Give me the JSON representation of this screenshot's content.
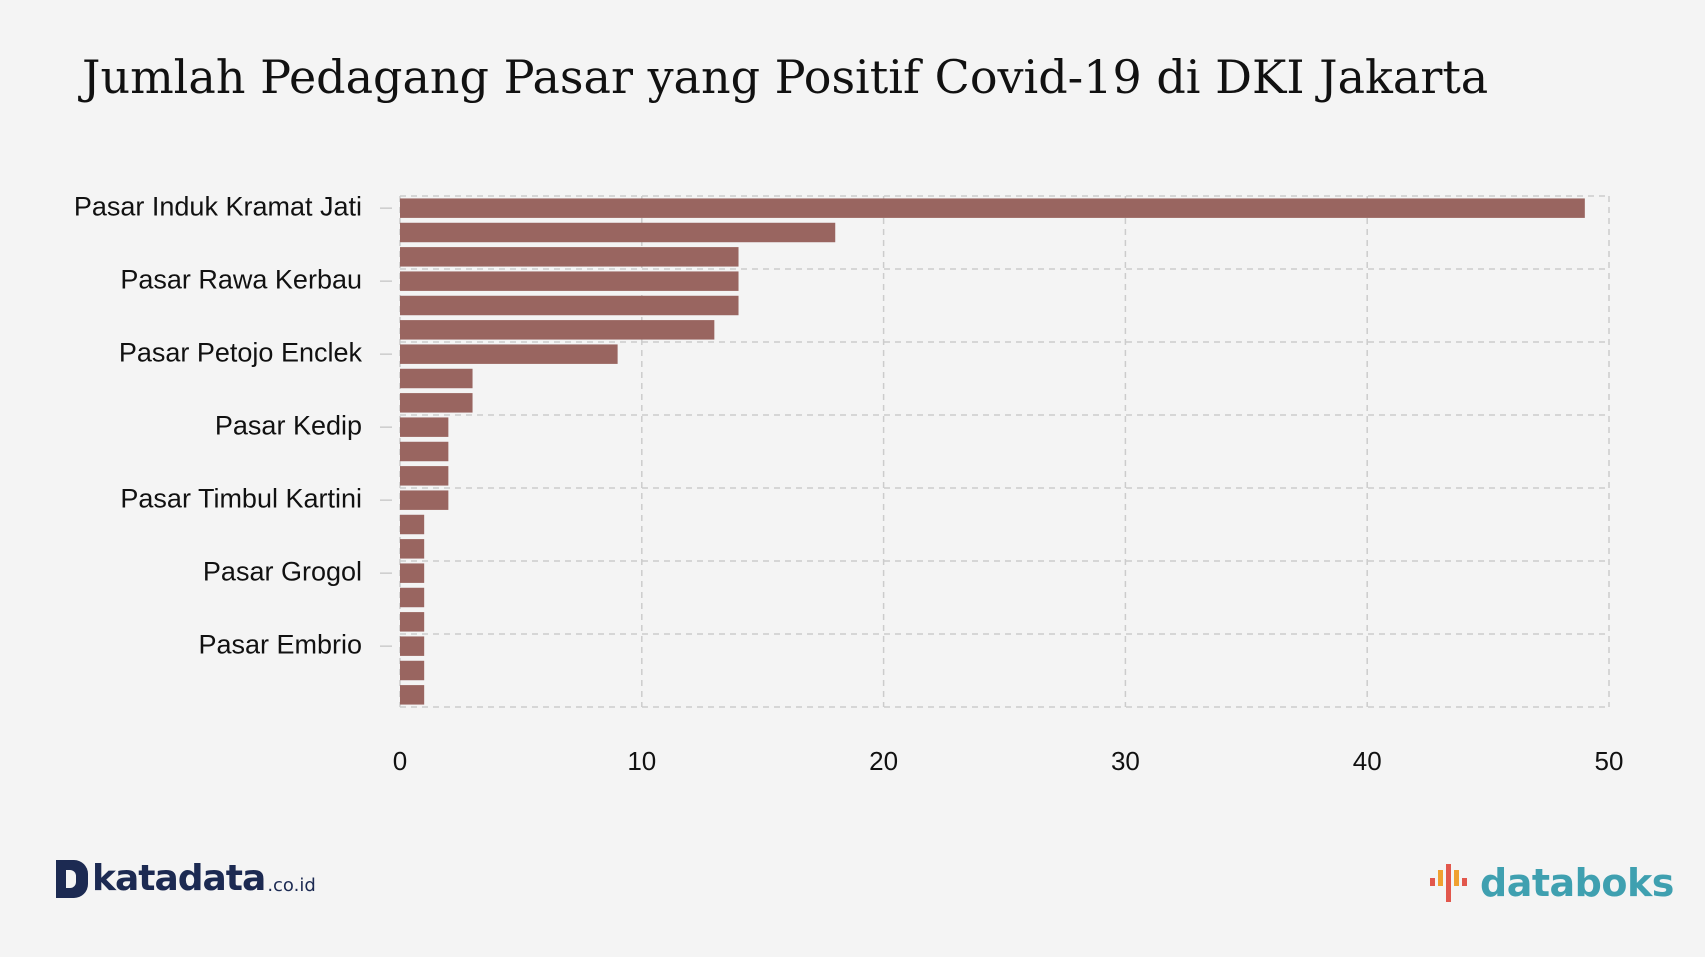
{
  "chart_data": {
    "type": "bar",
    "orientation": "horizontal",
    "title": "Jumlah Pedagang Pasar yang Positif Covid-19 di DKI Jakarta",
    "categories": [
      "Pasar Induk Kramat Jati",
      "",
      "",
      "Pasar Rawa Kerbau",
      "",
      "",
      "Pasar Petojo Enclek",
      "",
      "",
      "Pasar Kedip",
      "",
      "",
      "Pasar Timbul Kartini",
      "",
      "",
      "Pasar Grogol",
      "",
      "",
      "Pasar Embrio",
      "",
      ""
    ],
    "values": [
      49,
      18,
      14,
      14,
      14,
      13,
      9,
      3,
      3,
      2,
      2,
      2,
      2,
      1,
      1,
      1,
      1,
      1,
      1,
      1,
      1
    ],
    "xlim": [
      0,
      50
    ],
    "xticks": [
      "0",
      "10",
      "20",
      "30",
      "40",
      "50"
    ],
    "bar_color": "#996560",
    "grid": true,
    "grid_style": "dashed"
  },
  "branding": {
    "left": {
      "icon": "katadata-d-icon",
      "name": "katadata",
      "suffix": ".co.id",
      "color": "#1c2a52"
    },
    "right": {
      "icon": "databoks-bars-icon",
      "name": "databoks",
      "color": "#3fa0b0"
    }
  }
}
